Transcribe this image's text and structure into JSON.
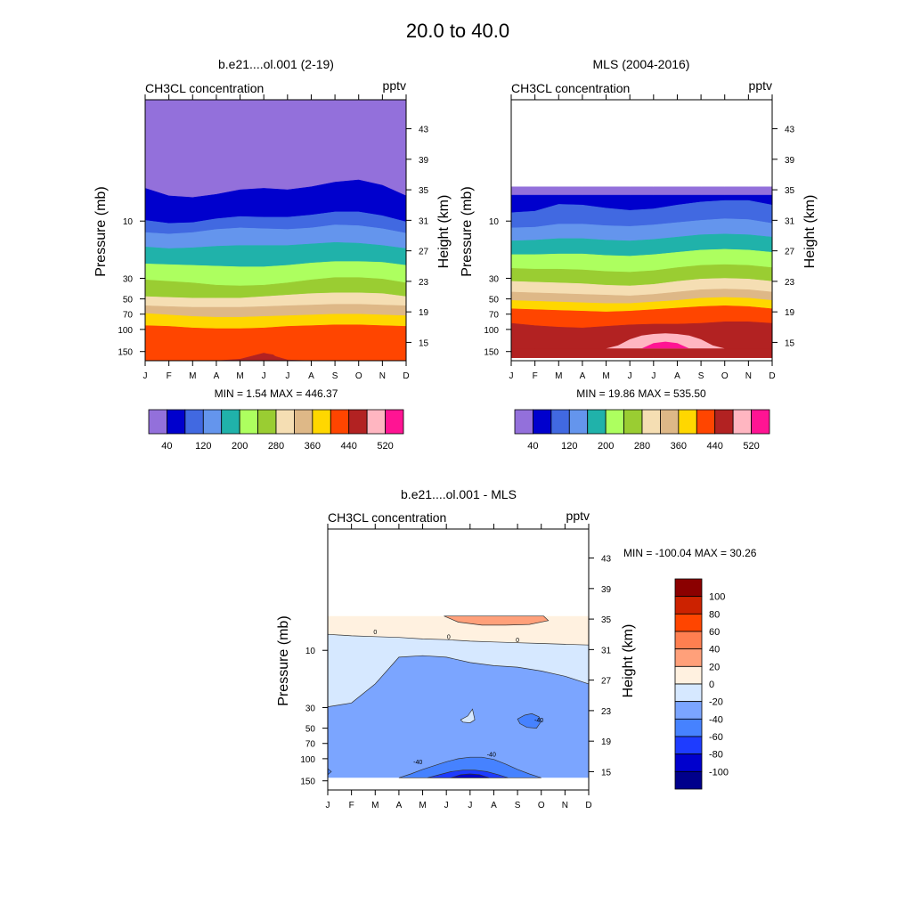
{
  "figure": {
    "title": "20.0 to  40.0"
  },
  "colors": {
    "absolute_levels": [
      "#9370DB",
      "#0000CD",
      "#4169E1",
      "#6495ED",
      "#20B2AA",
      "#ADFF5F",
      "#9ACD32",
      "#F5DEB3",
      "#DEB887",
      "#FFD700",
      "#FF4500",
      "#B22222",
      "#FFB6C1",
      "#FF1493"
    ],
    "diff_levels": [
      "#00008B",
      "#0000CD",
      "#1E3CFF",
      "#4682FF",
      "#7BA5FF",
      "#D6E8FF",
      "#FFF1E0",
      "#FFA07A",
      "#FF7F50",
      "#FF4500",
      "#CC2200",
      "#8B0000"
    ]
  },
  "chart_data": [
    {
      "id": "model",
      "type": "contour",
      "title": "b.e21....ol.001 (2-19)",
      "subtitle_left": "CH3CL concentration",
      "subtitle_right": "pptv",
      "ylabel_left": "Pressure (mb)",
      "ylabel_right": "Height (km)",
      "x_ticks": [
        "J",
        "F",
        "M",
        "A",
        "M",
        "J",
        "J",
        "A",
        "S",
        "O",
        "N",
        "D"
      ],
      "pressure_ticks": [
        "10",
        "30",
        "50",
        "70",
        "100",
        "150"
      ],
      "height_ticks": [
        "43",
        "39",
        "35",
        "31",
        "27",
        "23",
        "19",
        "15"
      ],
      "stats": "MIN =   1.54  MAX = 446.37",
      "min": 1.54,
      "max": 446.37,
      "colorbar_labels": [
        "40",
        "120",
        "200",
        "280",
        "360",
        "440",
        "520"
      ],
      "level_boundaries_height_km": [
        [
          35.2,
          34.2,
          34.0,
          34.4,
          35.0,
          35.2,
          35.0,
          35.4,
          36.0,
          36.3,
          35.6,
          34.2
        ],
        [
          31.0,
          30.6,
          30.7,
          31.2,
          31.5,
          31.4,
          31.4,
          31.7,
          32.1,
          32.1,
          31.6,
          30.8
        ],
        [
          29.4,
          29.2,
          29.4,
          29.8,
          30.0,
          29.9,
          29.8,
          30.0,
          30.4,
          30.3,
          29.9,
          29.3
        ],
        [
          27.5,
          27.3,
          27.4,
          27.6,
          27.7,
          27.7,
          27.7,
          27.9,
          28.1,
          28.0,
          27.7,
          27.3
        ],
        [
          25.3,
          25.2,
          25.1,
          25.0,
          24.9,
          24.9,
          25.1,
          25.4,
          25.6,
          25.6,
          25.5,
          25.1
        ],
        [
          23.2,
          23.0,
          22.8,
          22.5,
          22.4,
          22.5,
          22.8,
          23.2,
          23.5,
          23.5,
          23.3,
          22.8
        ],
        [
          21.0,
          20.9,
          20.8,
          20.8,
          20.8,
          21.0,
          21.2,
          21.4,
          21.5,
          21.5,
          21.4,
          21.0
        ],
        [
          19.8,
          19.7,
          19.6,
          19.6,
          19.6,
          19.7,
          19.8,
          19.9,
          20.0,
          20.0,
          19.9,
          19.8
        ],
        [
          18.8,
          18.6,
          18.4,
          18.3,
          18.3,
          18.4,
          18.5,
          18.6,
          18.7,
          18.7,
          18.6,
          18.5
        ],
        [
          17.2,
          17.1,
          16.9,
          16.8,
          16.8,
          16.9,
          17.1,
          17.2,
          17.3,
          17.3,
          17.2,
          17.1
        ],
        [
          12.6,
          12.6,
          12.6,
          12.6,
          12.8,
          13.6,
          12.7,
          12.6,
          12.6,
          12.6,
          12.6,
          12.6
        ]
      ],
      "level_color_index": [
        0,
        1,
        2,
        3,
        4,
        5,
        6,
        7,
        8,
        9,
        10,
        11
      ]
    },
    {
      "id": "mls",
      "type": "contour",
      "title": "MLS (2004-2016)",
      "subtitle_left": "CH3CL concentration",
      "subtitle_right": "pptv",
      "ylabel_left": "Pressure (mb)",
      "ylabel_right": "Height (km)",
      "x_ticks": [
        "J",
        "F",
        "M",
        "A",
        "M",
        "J",
        "J",
        "A",
        "S",
        "O",
        "N",
        "D"
      ],
      "pressure_ticks": [
        "10",
        "30",
        "50",
        "70",
        "100",
        "150"
      ],
      "height_ticks": [
        "43",
        "39",
        "35",
        "31",
        "27",
        "23",
        "19",
        "15"
      ],
      "stats": "MIN =  19.86  MAX = 535.50",
      "min": 19.86,
      "max": 535.5,
      "colorbar_labels": [
        "40",
        "120",
        "200",
        "280",
        "360",
        "440",
        "520"
      ],
      "data_top_km": 35.4,
      "data_bottom_km": 14.2,
      "level_boundaries_height_km": [
        [
          34.3,
          34.3,
          34.3,
          34.3,
          34.3,
          34.3,
          34.3,
          34.3,
          34.3,
          34.3,
          34.3,
          34.3
        ],
        [
          32.0,
          32.2,
          33.1,
          33.0,
          32.6,
          32.3,
          32.5,
          33.0,
          33.4,
          33.6,
          33.6,
          33.0
        ],
        [
          30.0,
          30.1,
          30.5,
          30.5,
          30.3,
          30.2,
          30.4,
          30.7,
          31.0,
          31.2,
          31.1,
          30.6
        ],
        [
          28.3,
          28.4,
          28.6,
          28.6,
          28.4,
          28.3,
          28.5,
          28.8,
          29.1,
          29.2,
          29.1,
          28.8
        ],
        [
          26.5,
          26.5,
          26.6,
          26.6,
          26.4,
          26.3,
          26.5,
          26.8,
          27.1,
          27.2,
          27.1,
          26.8
        ],
        [
          24.7,
          24.6,
          24.6,
          24.5,
          24.3,
          24.2,
          24.4,
          24.8,
          25.1,
          25.2,
          25.1,
          24.8
        ],
        [
          23.0,
          22.9,
          22.8,
          22.7,
          22.5,
          22.4,
          22.6,
          23.0,
          23.3,
          23.4,
          23.3,
          23.0
        ],
        [
          21.6,
          21.5,
          21.4,
          21.3,
          21.2,
          21.1,
          21.3,
          21.6,
          21.9,
          22.0,
          21.9,
          21.6
        ],
        [
          20.5,
          20.4,
          20.3,
          20.2,
          20.1,
          20.1,
          20.3,
          20.5,
          20.8,
          20.9,
          20.8,
          20.5
        ],
        [
          19.4,
          19.3,
          19.2,
          19.1,
          19.0,
          19.1,
          19.3,
          19.5,
          19.7,
          19.8,
          19.7,
          19.4
        ],
        [
          17.5,
          17.2,
          17.0,
          16.9,
          17.1,
          17.3,
          17.4,
          17.4,
          17.5,
          17.7,
          17.7,
          17.5
        ],
        [
          13.0,
          13.0,
          13.0,
          13.0,
          13.0,
          13.0,
          13.0,
          13.0,
          13.0,
          13.0,
          13.0,
          13.0
        ]
      ],
      "level_color_index": [
        0,
        1,
        2,
        3,
        4,
        5,
        6,
        7,
        8,
        9,
        10,
        11
      ],
      "pink_patch_months": [
        4.0,
        4.5,
        5.0,
        5.5,
        6.0,
        6.5,
        7.0,
        7.5,
        8.0,
        8.5,
        9.0
      ],
      "pink_patch_top_km": [
        14.2,
        14.6,
        15.4,
        15.9,
        16.1,
        16.2,
        16.1,
        15.9,
        15.4,
        14.6,
        14.2
      ],
      "magenta_patch_months": [
        5.5,
        6.0,
        6.5,
        7.0,
        7.5
      ],
      "magenta_patch_top_km": [
        14.2,
        14.9,
        15.1,
        14.9,
        14.2
      ]
    },
    {
      "id": "diff",
      "type": "contour",
      "title": "b.e21....ol.001 - MLS",
      "subtitle_left": "CH3CL concentration",
      "subtitle_right": "pptv",
      "ylabel_left": "Pressure (mb)",
      "ylabel_right": "Height (km)",
      "x_ticks": [
        "J",
        "F",
        "M",
        "A",
        "M",
        "J",
        "J",
        "A",
        "S",
        "O",
        "N",
        "D"
      ],
      "pressure_ticks": [
        "10",
        "30",
        "50",
        "70",
        "100",
        "150"
      ],
      "height_ticks": [
        "43",
        "39",
        "35",
        "31",
        "27",
        "23",
        "19",
        "15"
      ],
      "stats": "MIN = -100.04  MAX =  30.26",
      "min": -100.04,
      "max": 30.26,
      "colorbar_labels": [
        "100",
        "80",
        "60",
        "40",
        "20",
        "0",
        "-20",
        "-40",
        "-60",
        "-80",
        "-100"
      ],
      "contour_labels": [
        "0",
        "0",
        "0",
        "-40",
        "-40",
        "-40"
      ],
      "data_top_km": 35.4,
      "data_bottom_km": 14.2,
      "zero_line_km": [
        33.0,
        32.8,
        32.7,
        32.6,
        32.4,
        32.3,
        32.1,
        32.0,
        31.9,
        31.8,
        31.7,
        31.6
      ],
      "minus20_line_km": [
        23.5,
        24.0,
        26.5,
        30.0,
        30.2,
        30.0,
        29.3,
        28.9,
        28.7,
        28.2,
        27.5,
        26.5
      ],
      "minus40_bottom_months": [
        3.0,
        3.5,
        4.0,
        4.5,
        5.0,
        5.5,
        6.0,
        6.5,
        7.0,
        7.5,
        8.0,
        8.5,
        9.0
      ],
      "minus40_bottom_km": [
        14.2,
        14.7,
        15.3,
        15.8,
        16.3,
        16.7,
        16.9,
        16.9,
        16.6,
        16.0,
        15.3,
        14.7,
        14.2
      ],
      "minus60_bottom_months": [
        4.2,
        4.7,
        5.2,
        5.7,
        6.2,
        6.7,
        7.2,
        7.6
      ],
      "minus60_bottom_km": [
        14.2,
        14.6,
        15.0,
        15.2,
        15.2,
        15.0,
        14.6,
        14.2
      ],
      "minus80_bottom_months": [
        5.2,
        5.6,
        6.0,
        6.4,
        6.8
      ],
      "minus80_bottom_km": [
        14.2,
        14.6,
        14.7,
        14.6,
        14.2
      ],
      "pos20_patch_months": [
        4.9,
        5.5,
        6.5,
        7.5,
        8.5,
        9.3,
        9.1,
        8.5,
        7.5,
        6.5,
        5.5
      ],
      "pos20_patch_km": [
        35.4,
        34.6,
        34.2,
        34.2,
        34.3,
        34.8,
        35.4,
        35.4,
        35.4,
        35.4,
        35.4
      ],
      "minus40_patch_months": [
        8.0,
        8.3,
        8.6,
        8.9,
        9.0,
        8.8,
        8.4,
        8.1
      ],
      "minus40_patch_km": [
        21.9,
        22.4,
        22.6,
        22.2,
        21.6,
        20.7,
        20.8,
        21.3
      ],
      "minus20_hole_months": [
        5.6,
        5.9,
        6.1,
        6.2,
        6.0,
        5.7
      ],
      "minus20_hole_km": [
        21.8,
        22.3,
        23.2,
        21.8,
        21.4,
        21.5
      ],
      "minus40_corner_months": [
        0.0,
        0.15,
        0.0
      ],
      "minus40_corner_km": [
        15.4,
        15.0,
        14.6
      ]
    }
  ]
}
